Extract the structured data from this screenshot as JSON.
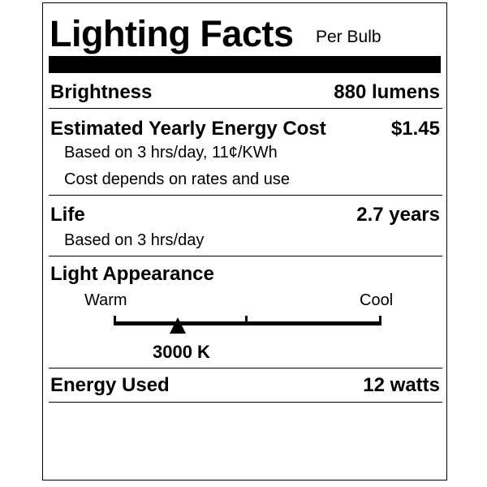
{
  "title": "Lighting Facts",
  "subtitle": "Per Bulb",
  "brightness": {
    "label": "Brightness",
    "value": "880 lumens"
  },
  "energy_cost": {
    "label": "Estimated Yearly Energy Cost",
    "value": "$1.45",
    "notes": [
      "Based on 3 hrs/day, 11¢/KWh",
      "Cost depends on rates and use"
    ]
  },
  "life": {
    "label": "Life",
    "value": "2.7 years",
    "note": "Based on 3 hrs/day"
  },
  "light_appearance": {
    "label": "Light Appearance",
    "warm_label": "Warm",
    "cool_label": "Cool",
    "value": "3000 K",
    "marker_position_fraction": 0.24
  },
  "energy_used": {
    "label": "Energy Used",
    "value": "12 watts"
  }
}
